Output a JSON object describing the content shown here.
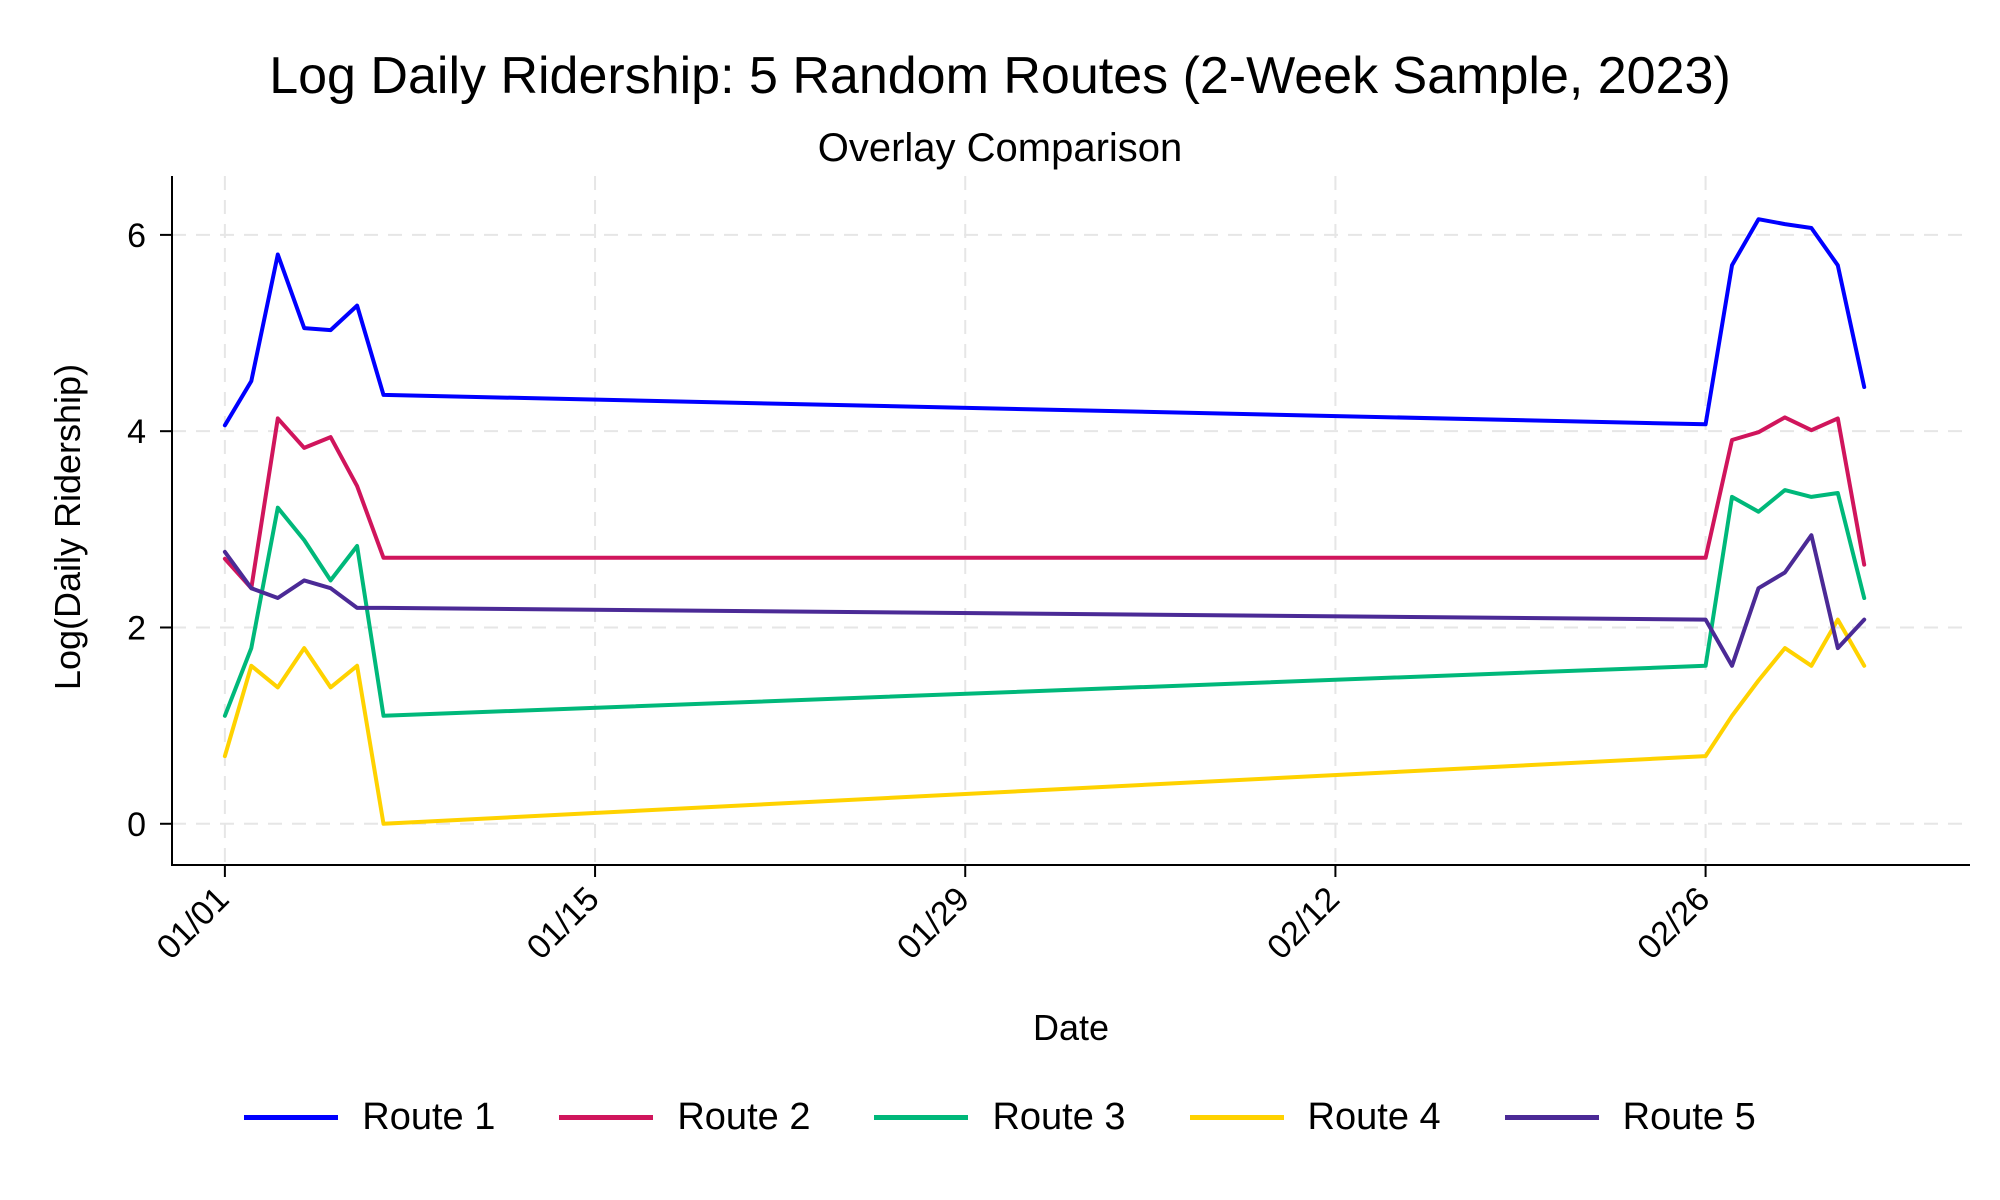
{
  "chart_data": {
    "type": "line",
    "title": "Log Daily Ridership: 5 Random Routes (2-Week Sample, 2023)",
    "subtitle": "Overlay Comparison",
    "xlabel": "Date",
    "ylabel": "Log(Daily Ridership)",
    "x_ticks": [
      "01/01",
      "01/15",
      "01/29",
      "02/12",
      "02/26"
    ],
    "y_ticks": [
      0,
      2,
      4,
      6
    ],
    "ylim": [
      -0.42,
      6.6
    ],
    "xlim": [
      "2022-12-30",
      "2023-03-08"
    ],
    "grid": true,
    "legend_position": "bottom",
    "x": [
      "2023-01-01",
      "2023-01-02",
      "2023-01-03",
      "2023-01-04",
      "2023-01-05",
      "2023-01-06",
      "2023-01-07",
      "2023-02-26",
      "2023-02-27",
      "2023-02-28",
      "2023-03-01",
      "2023-03-02",
      "2023-03-03",
      "2023-03-04"
    ],
    "series": [
      {
        "name": "Route 1",
        "color": "#0000ff",
        "values": [
          4.06,
          4.51,
          5.8,
          5.05,
          5.03,
          5.28,
          4.37,
          4.07,
          5.69,
          6.16,
          6.11,
          6.07,
          5.69,
          4.45
        ]
      },
      {
        "name": "Route 2",
        "color": "#d0155c",
        "values": [
          2.7,
          2.4,
          4.13,
          3.83,
          3.94,
          3.44,
          2.71,
          2.71,
          3.91,
          3.99,
          4.14,
          4.01,
          4.13,
          2.64
        ]
      },
      {
        "name": "Route 3",
        "color": "#00b87a",
        "values": [
          1.1,
          1.79,
          3.22,
          2.89,
          2.48,
          2.83,
          1.1,
          1.61,
          3.33,
          3.18,
          3.4,
          3.33,
          3.37,
          2.3
        ]
      },
      {
        "name": "Route 4",
        "color": "#ffd200",
        "values": [
          0.69,
          1.61,
          1.39,
          1.79,
          1.39,
          1.61,
          0.0,
          0.69,
          1.1,
          1.46,
          1.79,
          1.61,
          2.08,
          1.61
        ]
      },
      {
        "name": "Route 5",
        "color": "#4b2a96",
        "values": [
          2.77,
          2.4,
          2.3,
          2.48,
          2.4,
          2.2,
          2.2,
          2.08,
          1.61,
          2.4,
          2.56,
          2.94,
          1.79,
          2.08
        ]
      }
    ]
  }
}
